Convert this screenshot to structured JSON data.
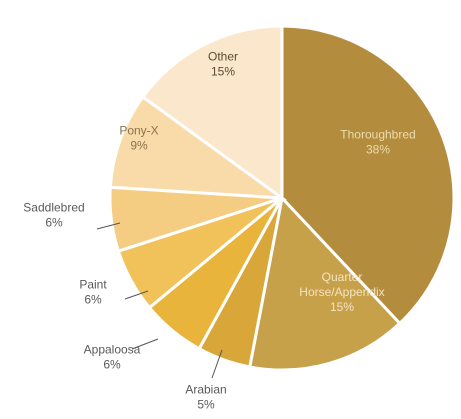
{
  "chart_data": {
    "type": "pie",
    "title": "",
    "slices": [
      {
        "label_lines": [
          "Thoroughbred"
        ],
        "value_label": "38%",
        "value": 38,
        "color": "#b48c3e",
        "label_color": "#ecdcae"
      },
      {
        "label_lines": [
          "Quarter",
          "Horse/Appendix"
        ],
        "value_label": "15%",
        "value": 15,
        "color": "#c7a04a",
        "label_color": "#f3e4c0"
      },
      {
        "label_lines": [
          "Arabian"
        ],
        "value_label": "5%",
        "value": 5,
        "color": "#d9a63a",
        "label_color": "#5a5a5a"
      },
      {
        "label_lines": [
          "Appaloosa"
        ],
        "value_label": "6%",
        "value": 6,
        "color": "#e9b43c",
        "label_color": "#5a5a5a"
      },
      {
        "label_lines": [
          "Paint"
        ],
        "value_label": "6%",
        "value": 6,
        "color": "#f2c25a",
        "label_color": "#5a5a5a"
      },
      {
        "label_lines": [
          "Saddlebred"
        ],
        "value_label": "6%",
        "value": 6,
        "color": "#f5cd82",
        "label_color": "#5a5a5a"
      },
      {
        "label_lines": [
          "Pony-X"
        ],
        "value_label": "9%",
        "value": 9,
        "color": "#f8dba8",
        "label_color": "#8a7350"
      },
      {
        "label_lines": [
          "Other"
        ],
        "value_label": "15%",
        "value": 15,
        "color": "#fbe8cc",
        "label_color": "#5a4a30"
      }
    ]
  }
}
